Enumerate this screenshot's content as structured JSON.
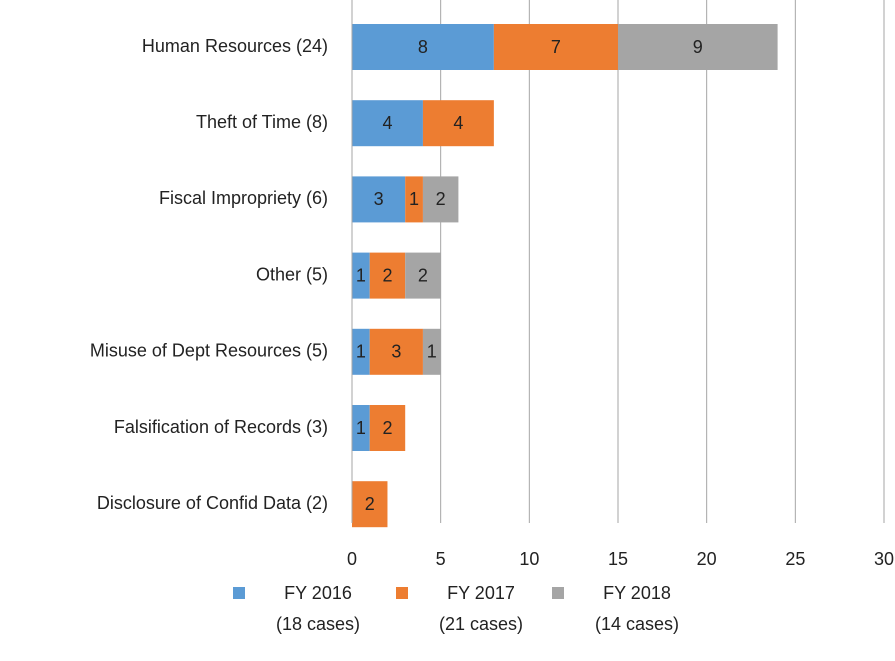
{
  "chart_data": {
    "type": "stacked_barh",
    "categories": [
      "Human Resources (24)",
      "Theft of Time (8)",
      "Fiscal Impropriety (6)",
      "Other (5)",
      "Misuse of Dept Resources (5)",
      "Falsification of Records (3)",
      "Disclosure of Confid Data (2)"
    ],
    "series": [
      {
        "name": "FY 2016\n(18 cases)",
        "color": "#5b9bd5",
        "values": [
          8,
          4,
          3,
          1,
          1,
          1,
          null
        ]
      },
      {
        "name": "FY 2017\n(21 cases)",
        "color": "#ed7d31",
        "values": [
          7,
          4,
          1,
          2,
          3,
          2,
          2
        ]
      },
      {
        "name": "FY 2018\n(14 cases)",
        "color": "#a5a5a5",
        "values": [
          9,
          null,
          2,
          2,
          1,
          null,
          null
        ]
      }
    ],
    "xlim": [
      0,
      30
    ],
    "xticks": [
      0,
      5,
      10,
      15,
      20,
      25,
      30
    ],
    "grid": true,
    "legend": "bottom"
  }
}
